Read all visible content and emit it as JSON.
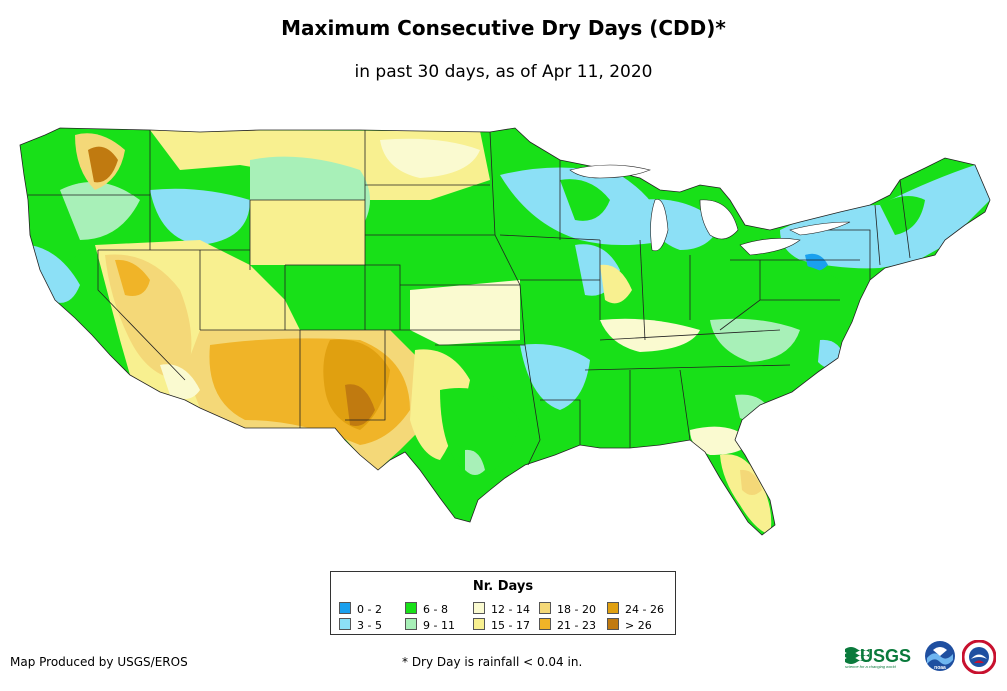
{
  "title": "Maximum Consecutive Dry Days (CDD)*",
  "subtitle": "in past 30 days, as of Apr 11, 2020",
  "legend": {
    "title": "Nr. Days",
    "items": [
      {
        "label": "0 - 2",
        "color": "#1aa0ee"
      },
      {
        "label": "3 - 5",
        "color": "#8ce0f6"
      },
      {
        "label": "6 - 8",
        "color": "#18e018"
      },
      {
        "label": "9 - 11",
        "color": "#a8f0b8"
      },
      {
        "label": "12 - 14",
        "color": "#fafad0"
      },
      {
        "label": "15 - 17",
        "color": "#f8f090"
      },
      {
        "label": "18 - 20",
        "color": "#f4d878"
      },
      {
        "label": "21 - 23",
        "color": "#f0b428"
      },
      {
        "label": "24 - 26",
        "color": "#e0a010"
      },
      {
        "label": "> 26",
        "color": "#c07a10"
      }
    ]
  },
  "footer": {
    "credit": "Map Produced by USGS/EROS",
    "note": "* Dry Day is rainfall < 0.04 in."
  },
  "logos": {
    "usgs_text": "USGS",
    "usgs_tagline": "science for a changing world",
    "noaa_text": "noaa"
  }
}
